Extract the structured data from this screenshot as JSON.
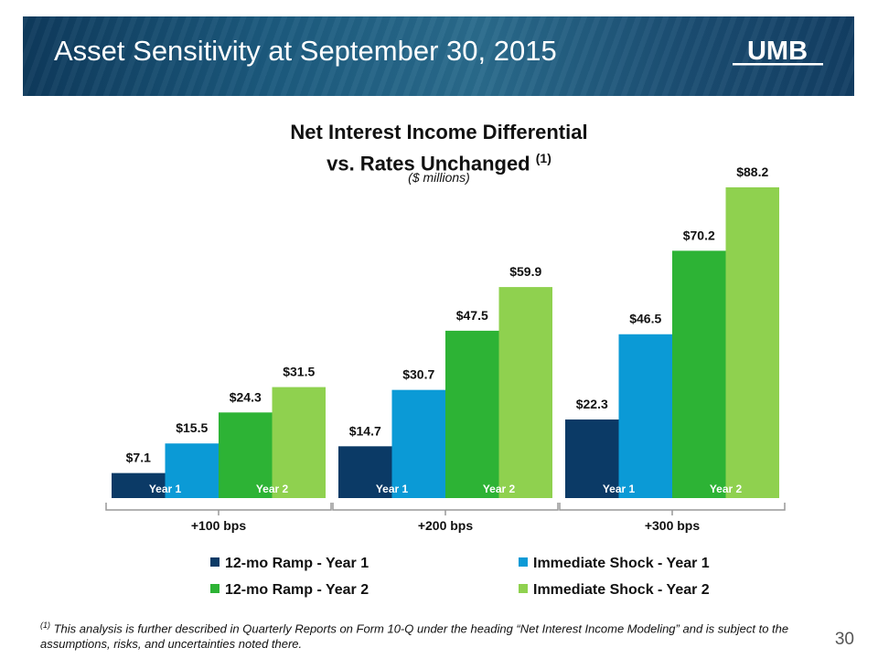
{
  "header": {
    "title": "Asset Sensitivity at September 30, 2015",
    "logo_text": "UMB"
  },
  "chart_data": {
    "type": "bar",
    "title": "Net Interest Income Differential vs. Rates Unchanged",
    "title_line1": "Net Interest Income Differential",
    "title_line2": "vs. Rates Unchanged",
    "title_note": "(1)",
    "subtitle": "($ millions)",
    "categories": [
      "+100 bps",
      "+200 bps",
      "+300 bps"
    ],
    "sub_labels": [
      "Year 1",
      "Year 2"
    ],
    "ylim": [
      0,
      100
    ],
    "grid": false,
    "legend_position": "bottom",
    "series": [
      {
        "name": "12-mo Ramp - Year 1",
        "values": [
          7.1,
          14.7,
          22.3
        ],
        "labels": [
          "$7.1",
          "$14.7",
          "$22.3"
        ],
        "color": "#0b3a66"
      },
      {
        "name": "Immediate Shock - Year 1",
        "values": [
          15.5,
          30.7,
          46.5
        ],
        "labels": [
          "$15.5",
          "$30.7",
          "$46.5"
        ],
        "color": "#0b9ad6"
      },
      {
        "name": "12-mo Ramp - Year 2",
        "values": [
          24.3,
          47.5,
          70.2
        ],
        "labels": [
          "$24.3",
          "$47.5",
          "$70.2"
        ],
        "color": "#2db335"
      },
      {
        "name": "Immediate Shock - Year 2",
        "values": [
          31.5,
          59.9,
          88.2
        ],
        "labels": [
          "$31.5",
          "$59.9",
          "$88.2"
        ],
        "color": "#8fd14f"
      }
    ]
  },
  "footnote": {
    "marker": "(1)",
    "text": " This analysis is further described in Quarterly Reports on Form 10-Q under the heading “Net Interest Income Modeling” and is subject to the assumptions, risks, and uncertainties noted there."
  },
  "page_number": "30"
}
